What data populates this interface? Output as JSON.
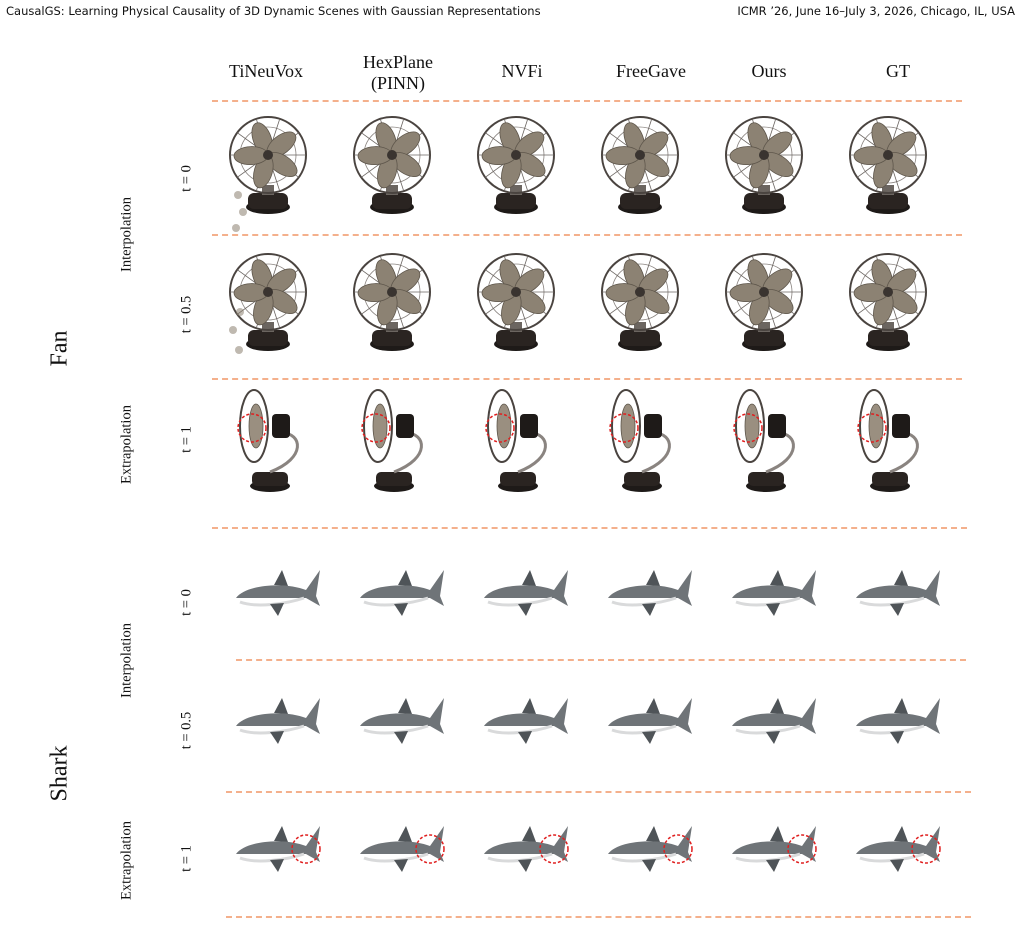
{
  "header": {
    "left": "CausalGS: Learning Physical Causality of 3D Dynamic Scenes with Gaussian Representations",
    "right": "ICMR ’26, June 16–July 3, 2026, Chicago, IL, USA"
  },
  "columns": [
    {
      "line1": "TiNeuVox",
      "line2": ""
    },
    {
      "line1": "HexPlane",
      "line2": "(PINN)"
    },
    {
      "line1": "NVFi",
      "line2": ""
    },
    {
      "line1": "FreeGave",
      "line2": ""
    },
    {
      "line1": "Ours",
      "line2": ""
    },
    {
      "line1": "GT",
      "line2": ""
    }
  ],
  "scenes": {
    "fan": "Fan",
    "shark": "Shark"
  },
  "groups": {
    "interpolation": "Interpolation",
    "extrapolation": "Extrapolation"
  },
  "times": {
    "t0": "t = 0",
    "t05": "t = 0.5",
    "t1": "t = 1"
  },
  "colors": {
    "dashed_line": "#f4b08c",
    "highlight_circle": "#e02020"
  }
}
